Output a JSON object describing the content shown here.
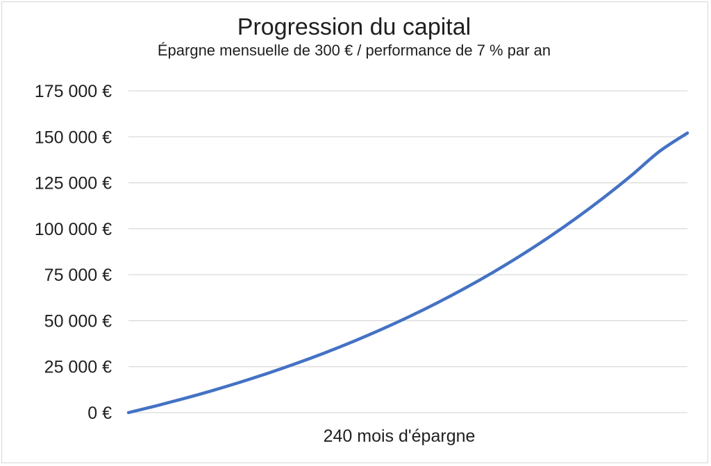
{
  "chart_data": {
    "type": "line",
    "title": "Progression du capital",
    "subtitle": "Épargne mensuelle de 300 € / performance de 7 % par an",
    "xlabel": "240 mois d'épargne",
    "ylabel": "",
    "ylim": [
      0,
      175000
    ],
    "yticks": [
      0,
      25000,
      50000,
      75000,
      100000,
      125000,
      150000,
      175000
    ],
    "ytick_labels": [
      "0 €",
      "25 000 €",
      "50 000 €",
      "75 000 €",
      "100 000 €",
      "125 000 €",
      "150 000 €",
      "175 000 €"
    ],
    "xlim": [
      0,
      240
    ],
    "grid": true,
    "legend": "none",
    "series": [
      {
        "color": "#4472c4",
        "x": [
          0,
          12,
          24,
          36,
          48,
          60,
          72,
          84,
          96,
          108,
          120,
          132,
          144,
          156,
          168,
          180,
          192,
          204,
          216,
          228,
          240
        ],
        "values": [
          0,
          3712,
          7693,
          11962,
          16539,
          21447,
          26710,
          32353,
          38405,
          44894,
          51852,
          59312,
          67313,
          75891,
          85090,
          94954,
          105531,
          116872,
          129033,
          142073,
          152056
        ]
      }
    ]
  }
}
